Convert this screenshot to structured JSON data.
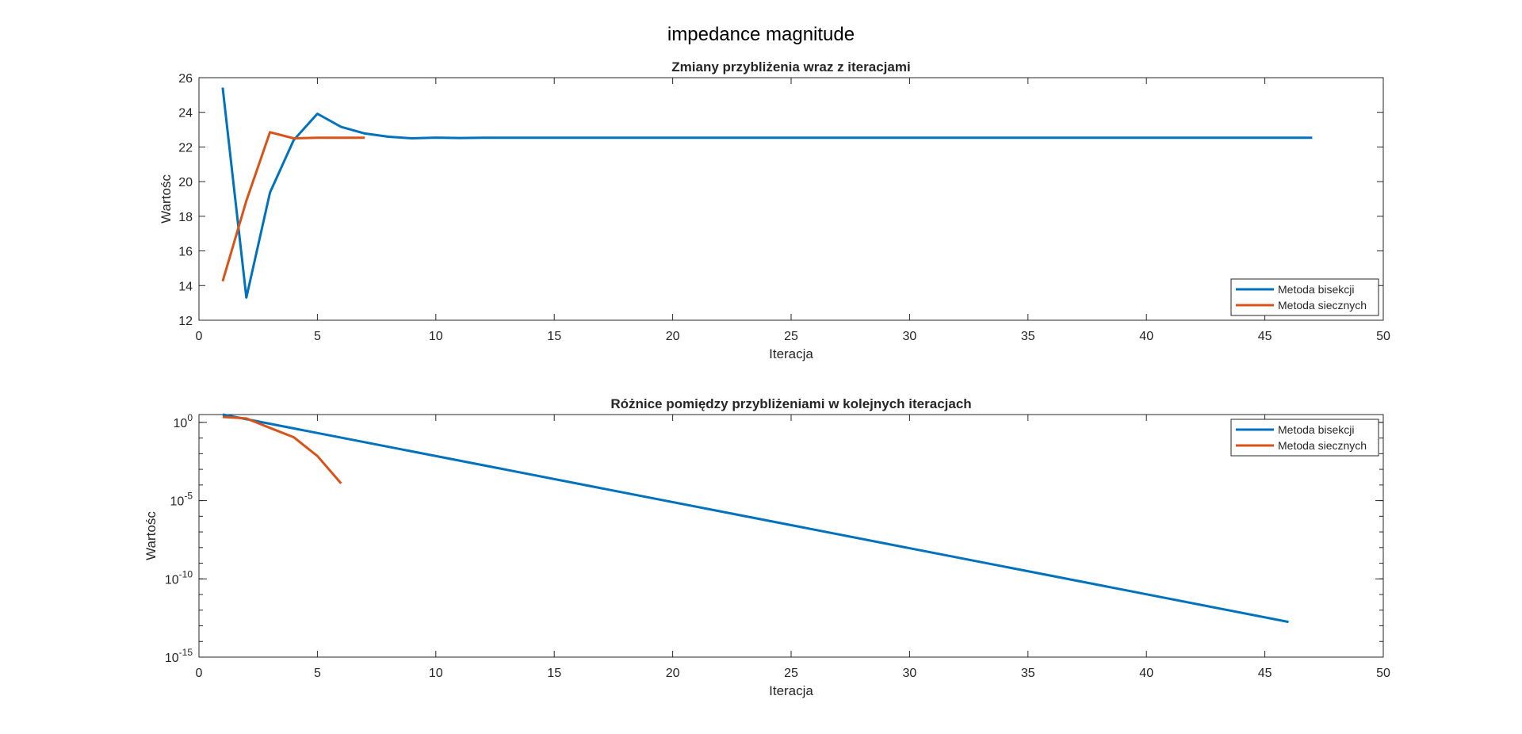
{
  "figure": {
    "title": "impedance magnitude"
  },
  "chart_data": [
    {
      "type": "line",
      "title": "Zmiany przybliżenia wraz z iteracjami",
      "xlabel": "Iteracja",
      "ylabel": "Wartośc",
      "xlim": [
        0,
        50
      ],
      "ylim": [
        12,
        26
      ],
      "yscale": "linear",
      "xticks": [
        0,
        5,
        10,
        15,
        20,
        25,
        30,
        35,
        40,
        45,
        50
      ],
      "yticks": [
        12,
        14,
        16,
        18,
        20,
        22,
        24,
        26
      ],
      "legend_position": "bottom-right",
      "grid": false,
      "series": [
        {
          "name": "Metoda bisekcji",
          "color": "#0072BD",
          "x": [
            1,
            2,
            3,
            4,
            5,
            6,
            7,
            8,
            9,
            10,
            11,
            12,
            13,
            14,
            15,
            16,
            17,
            18,
            19,
            20,
            21,
            22,
            23,
            24,
            25,
            26,
            27,
            28,
            29,
            30,
            31,
            32,
            33,
            34,
            35,
            36,
            37,
            38,
            39,
            40,
            41,
            42,
            43,
            44,
            45,
            46,
            47
          ],
          "y": [
            25.43,
            13.31,
            19.37,
            22.4,
            23.92,
            23.16,
            22.78,
            22.59,
            22.5,
            22.54,
            22.52,
            22.53,
            22.53,
            22.53,
            22.53,
            22.53,
            22.53,
            22.53,
            22.53,
            22.53,
            22.53,
            22.53,
            22.53,
            22.53,
            22.53,
            22.53,
            22.53,
            22.53,
            22.53,
            22.53,
            22.53,
            22.53,
            22.53,
            22.53,
            22.53,
            22.53,
            22.53,
            22.53,
            22.53,
            22.53,
            22.53,
            22.53,
            22.53,
            22.53,
            22.53,
            22.53,
            22.53
          ]
        },
        {
          "name": "Metoda siecznych",
          "color": "#D95319",
          "x": [
            1,
            2,
            3,
            4,
            5,
            6,
            7
          ],
          "y": [
            14.25,
            18.9,
            22.85,
            22.5,
            22.53,
            22.53,
            22.53
          ]
        }
      ]
    },
    {
      "type": "line",
      "title": "Różnice pomiędzy przybliżeniami w kolejnych iteracjach",
      "xlabel": "Iteracja",
      "ylabel": "Wartośc",
      "xlim": [
        0,
        50
      ],
      "ylim_log10": [
        -15,
        0.5
      ],
      "yscale": "log",
      "xticks": [
        0,
        5,
        10,
        15,
        20,
        25,
        30,
        35,
        40,
        45,
        50
      ],
      "yticks_exponents": [
        0,
        -5,
        -10,
        -15
      ],
      "ytick_base": "10",
      "legend_position": "top-right",
      "grid": false,
      "series": [
        {
          "name": "Metoda bisekcji",
          "color": "#0072BD",
          "x": [
            1,
            46
          ],
          "y_log10": [
            0.5,
            -12.75
          ]
        },
        {
          "name": "Metoda siecznych",
          "color": "#D95319",
          "x": [
            1,
            2,
            3,
            4,
            5,
            6
          ],
          "y_log10": [
            0.35,
            0.25,
            -0.35,
            -0.95,
            -2.15,
            -3.9
          ]
        }
      ]
    }
  ]
}
